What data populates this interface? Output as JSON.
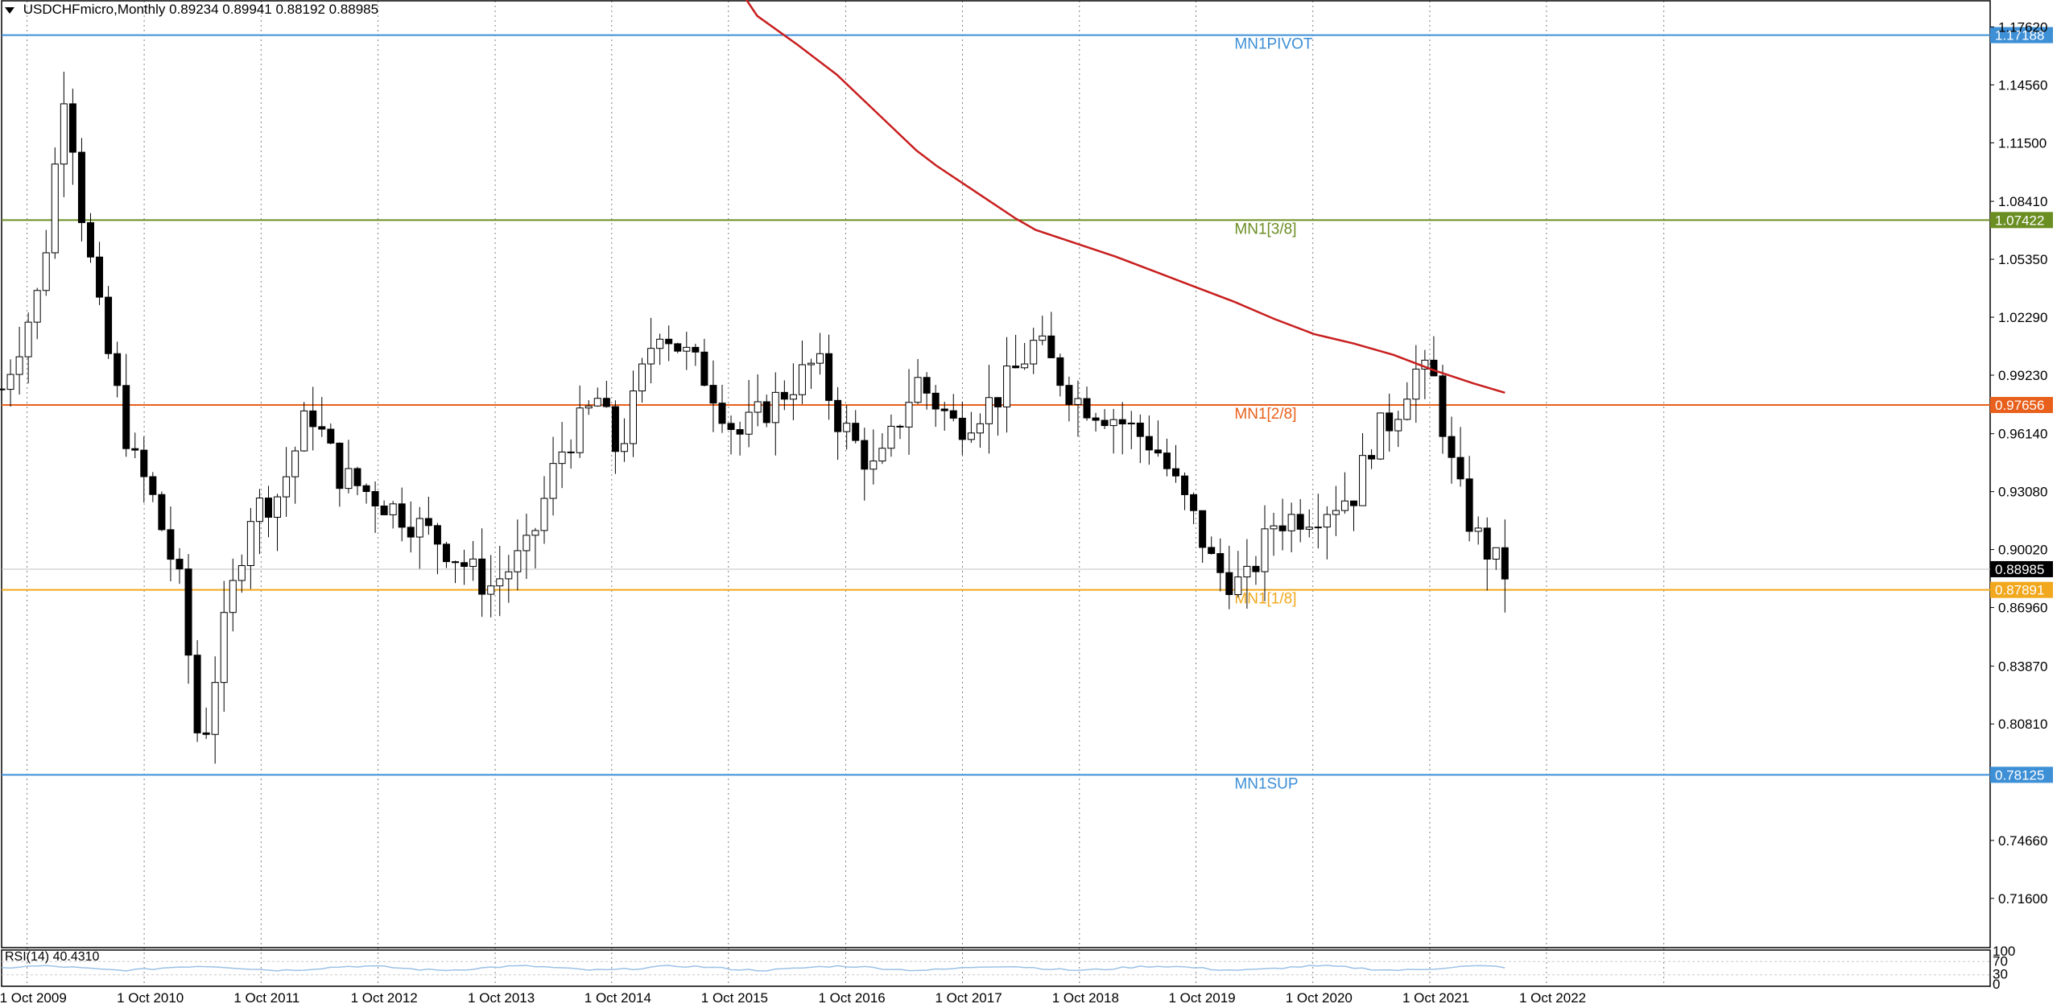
{
  "header": {
    "symbol": "USDCHFmicro,Monthly",
    "ohlc": "0.89234 0.89941 0.88192 0.88985"
  },
  "rsi": {
    "label": "RSI(14) 40.4310",
    "scale": [
      "100",
      "70",
      "30",
      "0"
    ]
  },
  "chart_data": {
    "type": "candlestick",
    "timeframe": "Monthly",
    "symbol": "USDCHFmicro",
    "ylim": [
      0.69,
      1.19
    ],
    "y_ticks": [
      "1.17620",
      "1.14560",
      "1.11500",
      "1.08410",
      "1.05350",
      "1.02290",
      "0.99230",
      "0.96140",
      "0.93080",
      "0.90020",
      "0.86960",
      "0.83870",
      "0.80810",
      "0.74660",
      "0.71600"
    ],
    "x_ticks": [
      "1 Oct 2009",
      "1 Oct 2010",
      "1 Oct 2011",
      "1 Oct 2012",
      "1 Oct 2013",
      "1 Oct 2014",
      "1 Oct 2015",
      "1 Oct 2016",
      "1 Oct 2017",
      "1 Oct 2018",
      "1 Oct 2019",
      "1 Oct 2020",
      "1 Oct 2021",
      "1 Oct 2022"
    ],
    "current_price": "0.88985",
    "levels": [
      {
        "name": "MN1PIVOT",
        "value": 1.17188,
        "label": "1.17188",
        "color": "#3d8fd6"
      },
      {
        "name": "MN1[3/8]",
        "value": 1.07422,
        "label": "1.07422",
        "color": "#6b8e23"
      },
      {
        "name": "MN1[2/8]",
        "value": 0.97656,
        "label": "0.97656",
        "color": "#e8601c"
      },
      {
        "name": "MN1[1/8]",
        "value": 0.87891,
        "label": "0.87891",
        "color": "#f2a81d"
      },
      {
        "name": "MN1SUP",
        "value": 0.78125,
        "label": "0.78125",
        "color": "#3d8fd6"
      }
    ],
    "moving_average": {
      "color": "#c81e1e",
      "points": [
        [
          0.3685,
          1.2
        ],
        [
          0.38,
          1.182
        ],
        [
          0.4,
          1.167
        ],
        [
          0.42,
          1.151
        ],
        [
          0.44,
          1.131
        ],
        [
          0.46,
          1.111
        ],
        [
          0.47,
          1.103
        ],
        [
          0.49,
          1.089
        ],
        [
          0.51,
          1.075
        ],
        [
          0.52,
          1.069
        ],
        [
          0.54,
          1.062
        ],
        [
          0.56,
          1.055
        ],
        [
          0.58,
          1.047
        ],
        [
          0.6,
          1.039
        ],
        [
          0.62,
          1.031
        ],
        [
          0.64,
          1.022
        ],
        [
          0.66,
          1.014
        ],
        [
          0.68,
          1.009
        ],
        [
          0.7,
          1.003
        ],
        [
          0.72,
          0.995
        ],
        [
          0.74,
          0.988
        ],
        [
          0.756,
          0.983
        ]
      ]
    },
    "candles_note": "",
    "key_points": [
      [
        0.0,
        0.985
      ],
      [
        0.02,
        1.04
      ],
      [
        0.032,
        1.15
      ],
      [
        0.04,
        1.08
      ],
      [
        0.05,
        1.02
      ],
      [
        0.065,
        0.95
      ],
      [
        0.075,
        0.93
      ],
      [
        0.09,
        0.88
      ],
      [
        0.1,
        0.79
      ],
      [
        0.11,
        0.85
      ],
      [
        0.125,
        0.92
      ],
      [
        0.14,
        0.93
      ],
      [
        0.155,
        0.975
      ],
      [
        0.17,
        0.94
      ],
      [
        0.2,
        0.92
      ],
      [
        0.22,
        0.905
      ],
      [
        0.245,
        0.88
      ],
      [
        0.265,
        0.9
      ],
      [
        0.28,
        0.95
      ],
      [
        0.3,
        0.98
      ],
      [
        0.31,
        0.95
      ],
      [
        0.33,
        1.02
      ],
      [
        0.355,
        0.99
      ],
      [
        0.37,
        0.96
      ],
      [
        0.39,
        0.98
      ],
      [
        0.41,
        1.0
      ],
      [
        0.42,
        0.97
      ],
      [
        0.44,
        0.94
      ],
      [
        0.46,
        0.99
      ],
      [
        0.48,
        0.965
      ],
      [
        0.5,
        0.98
      ],
      [
        0.52,
        1.01
      ],
      [
        0.54,
        0.98
      ],
      [
        0.56,
        0.97
      ],
      [
        0.58,
        0.955
      ],
      [
        0.6,
        0.915
      ],
      [
        0.61,
        0.89
      ],
      [
        0.625,
        0.88
      ],
      [
        0.64,
        0.915
      ],
      [
        0.66,
        0.92
      ],
      [
        0.68,
        0.93
      ],
      [
        0.69,
        0.96
      ],
      [
        0.7,
        0.97
      ],
      [
        0.71,
        0.995
      ],
      [
        0.72,
        0.99
      ],
      [
        0.73,
        0.94
      ],
      [
        0.74,
        0.91
      ],
      [
        0.755,
        0.888
      ]
    ]
  },
  "colors": {
    "up_candle": "#ffffff",
    "down_candle": "#000000",
    "grid": "#9a9a9a",
    "rsi_line": "#9bc1e6"
  }
}
